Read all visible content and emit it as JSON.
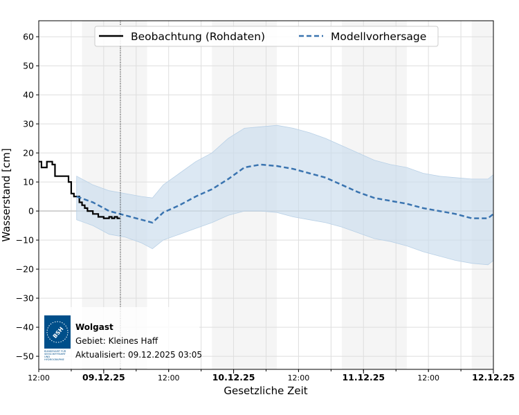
{
  "chart_data": {
    "type": "line",
    "title": "",
    "xlabel": "Gesetzliche Zeit",
    "ylabel": "Wasserstand [cm]",
    "xlim": [
      "2025-12-08T12:00",
      "2025-12-12T00:00"
    ],
    "ylim": [
      -54.5,
      65.5
    ],
    "yticks": [
      -50,
      -40,
      -30,
      -20,
      -10,
      0,
      10,
      20,
      30,
      40,
      50,
      60
    ],
    "xticks": [
      {
        "t": "2025-12-08T12:00",
        "label": "12:00",
        "major": false
      },
      {
        "t": "2025-12-09T00:00",
        "label": "09.12.25",
        "major": true
      },
      {
        "t": "2025-12-09T12:00",
        "label": "12:00",
        "major": false
      },
      {
        "t": "2025-12-10T00:00",
        "label": "10.12.25",
        "major": true
      },
      {
        "t": "2025-12-10T12:00",
        "label": "12:00",
        "major": false
      },
      {
        "t": "2025-12-11T00:00",
        "label": "11.12.25",
        "major": true
      },
      {
        "t": "2025-12-11T12:00",
        "label": "12:00",
        "major": false
      },
      {
        "t": "2025-12-12T00:00",
        "label": "12.12.25",
        "major": true
      }
    ],
    "grid": true,
    "legend_position": "top-center",
    "current_time": "2025-12-09T03:05",
    "shaded_periods": [
      [
        "2025-12-08T20:00",
        "2025-12-09T08:00"
      ],
      [
        "2025-12-09T20:00",
        "2025-12-10T08:00"
      ],
      [
        "2025-12-10T20:00",
        "2025-12-11T08:00"
      ],
      [
        "2025-12-11T20:00",
        "2025-12-12T00:00"
      ]
    ],
    "series": [
      {
        "name": "Beobachtung (Rohdaten)",
        "style": "solid-step",
        "color": "#000000",
        "points": [
          [
            "2025-12-08T12:00",
            17
          ],
          [
            "2025-12-08T12:30",
            15
          ],
          [
            "2025-12-08T13:00",
            15
          ],
          [
            "2025-12-08T13:30",
            17
          ],
          [
            "2025-12-08T14:00",
            17
          ],
          [
            "2025-12-08T14:30",
            16
          ],
          [
            "2025-12-08T15:00",
            12
          ],
          [
            "2025-12-08T16:00",
            12
          ],
          [
            "2025-12-08T17:00",
            12
          ],
          [
            "2025-12-08T17:30",
            10
          ],
          [
            "2025-12-08T18:00",
            6
          ],
          [
            "2025-12-08T18:30",
            5
          ],
          [
            "2025-12-08T19:00",
            5
          ],
          [
            "2025-12-08T19:30",
            3
          ],
          [
            "2025-12-08T20:00",
            2
          ],
          [
            "2025-12-08T20:30",
            1
          ],
          [
            "2025-12-08T21:00",
            0
          ],
          [
            "2025-12-08T22:00",
            -1
          ],
          [
            "2025-12-08T23:00",
            -2
          ],
          [
            "2025-12-09T00:00",
            -2.5
          ],
          [
            "2025-12-09T01:00",
            -2
          ],
          [
            "2025-12-09T01:30",
            -2.5
          ],
          [
            "2025-12-09T02:00",
            -2
          ],
          [
            "2025-12-09T02:30",
            -2.5
          ],
          [
            "2025-12-09T03:00",
            -2.5
          ]
        ]
      },
      {
        "name": "Modellvorhersage",
        "style": "dashed",
        "color": "#3a74b0",
        "band_color": "#c9dced",
        "points": [
          [
            "2025-12-08T19:00",
            5,
            12,
            -3
          ],
          [
            "2025-12-08T22:00",
            3,
            9,
            -5
          ],
          [
            "2025-12-09T01:00",
            0,
            7,
            -8
          ],
          [
            "2025-12-09T04:00",
            -1.5,
            6,
            -9
          ],
          [
            "2025-12-09T07:00",
            -3,
            5,
            -11
          ],
          [
            "2025-12-09T09:00",
            -4,
            4.5,
            -13
          ],
          [
            "2025-12-09T11:00",
            -0.5,
            9,
            -10
          ],
          [
            "2025-12-09T14:00",
            2,
            13,
            -8
          ],
          [
            "2025-12-09T17:00",
            5,
            17,
            -6
          ],
          [
            "2025-12-09T20:00",
            7.5,
            20,
            -4
          ],
          [
            "2025-12-09T23:00",
            11,
            25,
            -1.5
          ],
          [
            "2025-12-10T02:00",
            15,
            28.5,
            0
          ],
          [
            "2025-12-10T05:00",
            16,
            29,
            0
          ],
          [
            "2025-12-10T08:00",
            15.5,
            29.5,
            -0.5
          ],
          [
            "2025-12-10T11:00",
            14.5,
            28.5,
            -2
          ],
          [
            "2025-12-10T14:00",
            13,
            27,
            -3
          ],
          [
            "2025-12-10T17:00",
            11.5,
            25,
            -4
          ],
          [
            "2025-12-10T20:00",
            9,
            22.5,
            -5.5
          ],
          [
            "2025-12-10T23:00",
            6.5,
            20,
            -7.5
          ],
          [
            "2025-12-11T02:00",
            4.5,
            17.5,
            -9.5
          ],
          [
            "2025-12-11T05:00",
            3.5,
            16,
            -10.5
          ],
          [
            "2025-12-11T08:00",
            2.5,
            15,
            -12
          ],
          [
            "2025-12-11T11:00",
            1,
            13,
            -14
          ],
          [
            "2025-12-11T14:00",
            0,
            12,
            -15.5
          ],
          [
            "2025-12-11T17:00",
            -1,
            11.5,
            -17
          ],
          [
            "2025-12-11T20:00",
            -2.5,
            11,
            -18
          ],
          [
            "2025-12-11T23:00",
            -2.5,
            11,
            -18.5
          ],
          [
            "2025-12-12T00:00",
            -1,
            12.5,
            -17
          ]
        ]
      }
    ]
  },
  "info": {
    "station": "Wolgast",
    "area": "Gebiet: Kleines Haff",
    "updated": "Aktualisiert: 09.12.2025 03:05",
    "logo_text": "BSH",
    "logo_caption": "BUNDESAMT FÜR SEESCHIFFFAHRT UND HYDROGRAPHIE",
    "logo_color": "#004f8a"
  }
}
